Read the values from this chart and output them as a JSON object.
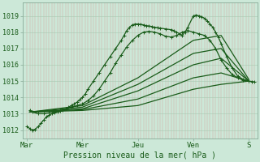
{
  "title": "",
  "xlabel": "Pression niveau de la mer( hPa )",
  "ylabel": "",
  "bg_color": "#cce8d8",
  "line_color": "#1a5c1a",
  "ylim": [
    1011.5,
    1019.8
  ],
  "yticks": [
    1012,
    1013,
    1014,
    1015,
    1016,
    1017,
    1018,
    1019
  ],
  "x_days": [
    "Mar",
    "Mer",
    "Jeu",
    "Ven",
    "S"
  ],
  "x_tick_pos": [
    0,
    1,
    2,
    3,
    4
  ],
  "xlim": [
    -0.08,
    4.15
  ],
  "lines": [
    {
      "x": [
        0.0,
        0.05,
        0.1,
        0.15,
        0.2,
        0.25,
        0.3,
        0.35,
        0.4,
        0.45,
        0.5,
        0.55,
        0.6,
        0.65,
        0.7,
        0.75,
        0.8,
        0.85,
        0.9,
        0.95,
        1.0,
        1.05,
        1.1,
        1.2,
        1.3,
        1.4,
        1.5,
        1.6,
        1.7,
        1.75,
        1.8,
        1.85,
        1.9,
        1.95,
        2.0,
        2.05,
        2.1,
        2.15,
        2.2,
        2.25,
        2.3,
        2.35,
        2.4,
        2.5,
        2.6,
        2.65,
        2.7,
        2.75,
        2.8,
        2.85,
        2.9,
        3.0,
        3.05,
        3.1,
        3.15,
        3.2,
        3.25,
        3.3,
        3.35,
        3.4,
        3.45,
        3.5,
        3.6,
        3.7,
        3.8,
        3.9,
        4.0,
        4.05,
        4.1
      ],
      "y": [
        1012.2,
        1012.1,
        1012.0,
        1012.05,
        1012.2,
        1012.4,
        1012.6,
        1012.8,
        1012.9,
        1013.0,
        1013.05,
        1013.1,
        1013.15,
        1013.2,
        1013.3,
        1013.4,
        1013.5,
        1013.6,
        1013.7,
        1013.85,
        1014.0,
        1014.2,
        1014.5,
        1015.0,
        1015.5,
        1016.0,
        1016.5,
        1017.0,
        1017.5,
        1017.8,
        1018.1,
        1018.3,
        1018.45,
        1018.5,
        1018.5,
        1018.48,
        1018.45,
        1018.4,
        1018.38,
        1018.35,
        1018.3,
        1018.28,
        1018.25,
        1018.2,
        1018.15,
        1018.1,
        1018.0,
        1017.9,
        1017.8,
        1018.0,
        1018.3,
        1019.0,
        1019.05,
        1019.0,
        1018.95,
        1018.85,
        1018.7,
        1018.5,
        1018.3,
        1018.0,
        1017.7,
        1017.3,
        1016.5,
        1015.8,
        1015.3,
        1015.1,
        1015.0,
        1014.98,
        1014.95
      ],
      "marker": "+",
      "lw": 0.9
    },
    {
      "x": [
        0.05,
        0.1,
        0.2,
        0.3,
        0.4,
        0.5,
        0.6,
        0.7,
        0.8,
        0.9,
        1.0,
        1.1,
        1.2,
        1.3,
        1.4,
        1.5,
        1.6,
        1.7,
        1.8,
        1.9,
        2.0,
        2.1,
        2.2,
        2.3,
        2.4,
        2.5,
        2.6,
        2.7,
        2.8,
        2.9,
        3.0,
        3.1,
        3.2,
        3.3,
        3.4,
        3.5,
        3.6,
        3.7,
        3.8,
        3.9,
        4.0
      ],
      "y": [
        1013.2,
        1013.1,
        1013.0,
        1013.0,
        1013.05,
        1013.1,
        1013.2,
        1013.3,
        1013.4,
        1013.5,
        1013.6,
        1013.8,
        1014.1,
        1014.5,
        1015.0,
        1015.5,
        1016.1,
        1016.6,
        1017.1,
        1017.5,
        1017.8,
        1018.0,
        1018.05,
        1018.0,
        1017.9,
        1017.75,
        1017.7,
        1017.8,
        1018.0,
        1018.1,
        1018.0,
        1017.9,
        1017.8,
        1017.5,
        1017.0,
        1016.3,
        1015.8,
        1015.4,
        1015.2,
        1015.05,
        1015.0
      ],
      "marker": "+",
      "lw": 0.9
    },
    {
      "x": [
        0.05,
        1.0,
        2.0,
        3.0,
        3.5,
        4.0
      ],
      "y": [
        1013.1,
        1013.5,
        1015.2,
        1017.5,
        1017.8,
        1015.1
      ],
      "marker": null,
      "lw": 0.9
    },
    {
      "x": [
        0.05,
        1.0,
        2.0,
        3.0,
        3.5,
        4.0
      ],
      "y": [
        1013.1,
        1013.4,
        1014.8,
        1016.7,
        1017.0,
        1015.0
      ],
      "marker": null,
      "lw": 0.9
    },
    {
      "x": [
        0.05,
        1.0,
        2.0,
        3.0,
        3.5,
        4.0
      ],
      "y": [
        1013.1,
        1013.3,
        1014.4,
        1016.0,
        1016.4,
        1015.0
      ],
      "marker": null,
      "lw": 0.9
    },
    {
      "x": [
        0.05,
        1.0,
        2.0,
        3.0,
        3.5,
        4.0
      ],
      "y": [
        1013.1,
        1013.25,
        1013.9,
        1015.2,
        1015.5,
        1015.0
      ],
      "marker": null,
      "lw": 0.9
    },
    {
      "x": [
        0.05,
        1.0,
        2.0,
        3.0,
        3.5,
        4.0
      ],
      "y": [
        1013.1,
        1013.2,
        1013.5,
        1014.5,
        1014.8,
        1015.0
      ],
      "marker": null,
      "lw": 0.9
    }
  ]
}
